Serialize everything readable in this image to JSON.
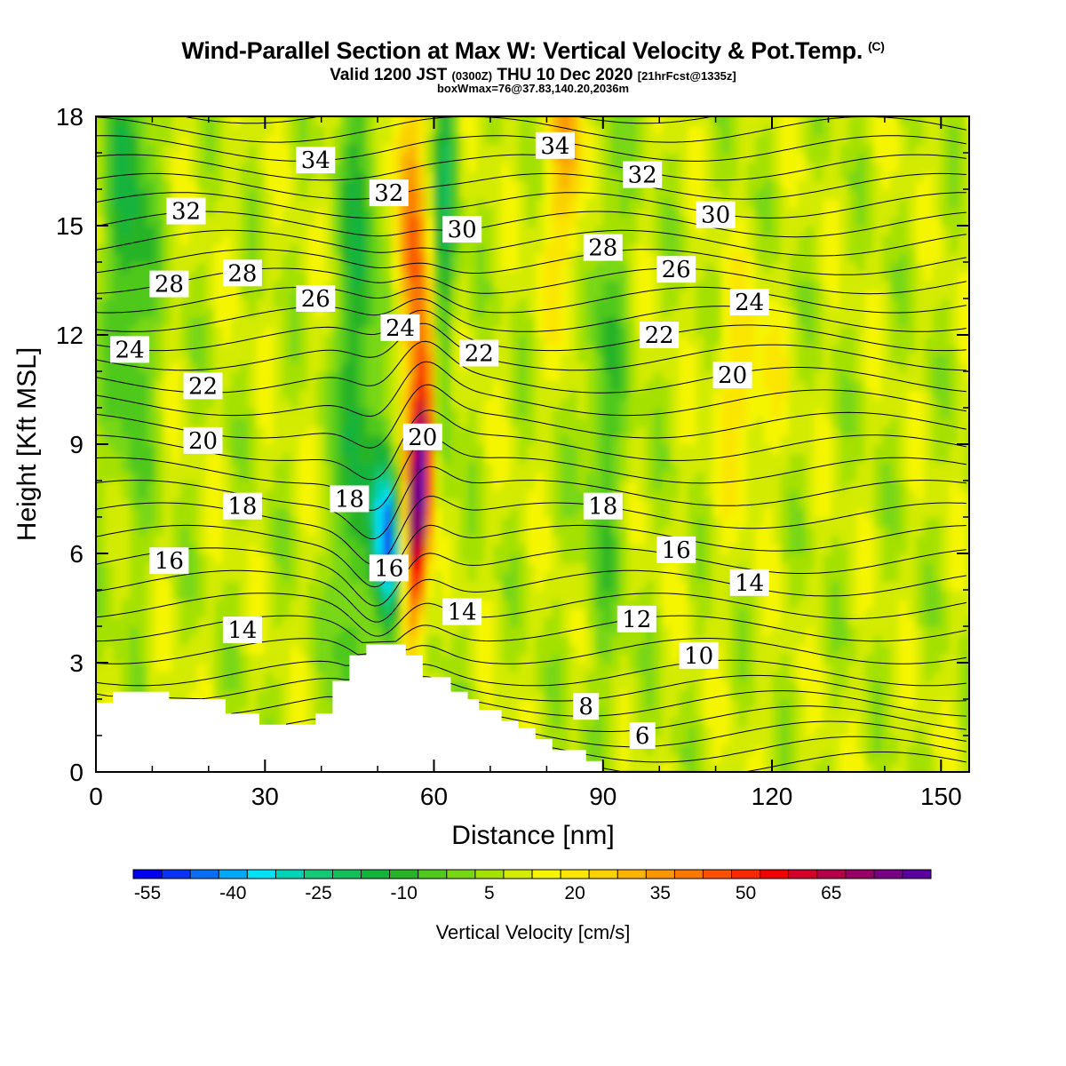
{
  "header": {
    "title": "Wind-Parallel Section at Max W: Vertical Velocity & Pot.Temp.",
    "title_mark": "(C)",
    "valid_prefix": "Valid 1200 JST",
    "valid_utc": "(0300Z)",
    "valid_date": "THU 10 Dec 2020",
    "forecast": "[21hrFcst@1335z]",
    "box_wmax": "boxWmax=76@37.83,140.20,2036m"
  },
  "chart_data": {
    "type": "contour-section",
    "xlabel": "Distance [nm]",
    "ylabel": "Height [Kft MSL]",
    "xlim": [
      0,
      155
    ],
    "ylim": [
      0,
      18
    ],
    "x_ticks": [
      0,
      30,
      60,
      90,
      120,
      150
    ],
    "y_ticks": [
      0,
      3,
      6,
      9,
      12,
      15,
      18
    ],
    "colorbar": {
      "title": "Vertical Velocity [cm/s]",
      "labels": [
        "-55",
        "-40",
        "-25",
        "-10",
        "5",
        "20",
        "35",
        "50",
        "65"
      ],
      "colors": [
        "#0000f0",
        "#0a32f5",
        "#0a6ef5",
        "#00a8f5",
        "#00e1f5",
        "#00d2b4",
        "#14c878",
        "#14be5a",
        "#14b43c",
        "#28b428",
        "#50c81e",
        "#78d714",
        "#a5e100",
        "#d2eb00",
        "#f5f500",
        "#fae600",
        "#fad200",
        "#fab400",
        "#fa9600",
        "#fa7800",
        "#fa5000",
        "#fa2800",
        "#f00000",
        "#d20028",
        "#b40046",
        "#960064",
        "#780082",
        "#5a00a0"
      ]
    },
    "terrain_profile": [
      [
        0,
        1.9
      ],
      [
        3,
        1.9
      ],
      [
        3,
        2.2
      ],
      [
        13,
        2.2
      ],
      [
        13,
        2.0
      ],
      [
        23,
        2.0
      ],
      [
        23,
        1.6
      ],
      [
        29,
        1.6
      ],
      [
        29,
        1.3
      ],
      [
        39,
        1.3
      ],
      [
        39,
        1.6
      ],
      [
        42,
        1.6
      ],
      [
        42,
        2.5
      ],
      [
        45,
        2.5
      ],
      [
        45,
        3.2
      ],
      [
        48,
        3.2
      ],
      [
        48,
        3.5
      ],
      [
        55,
        3.5
      ],
      [
        55,
        3.2
      ],
      [
        58,
        3.2
      ],
      [
        58,
        2.6
      ],
      [
        63,
        2.6
      ],
      [
        63,
        2.2
      ],
      [
        66,
        2.2
      ],
      [
        66,
        2.0
      ],
      [
        68,
        2.0
      ],
      [
        68,
        1.7
      ],
      [
        72,
        1.7
      ],
      [
        72,
        1.4
      ],
      [
        75,
        1.4
      ],
      [
        75,
        1.2
      ],
      [
        78,
        1.2
      ],
      [
        78,
        0.9
      ],
      [
        81,
        0.9
      ],
      [
        81,
        0.6
      ],
      [
        87,
        0.6
      ],
      [
        87,
        0.3
      ],
      [
        90,
        0.3
      ],
      [
        90,
        0.0
      ],
      [
        155,
        0.0
      ]
    ],
    "theta_contour_labels": [
      {
        "text": "34",
        "x": 39,
        "y": 16.8
      },
      {
        "text": "34",
        "x": 81.5,
        "y": 17.2
      },
      {
        "text": "32",
        "x": 16,
        "y": 15.4
      },
      {
        "text": "32",
        "x": 52,
        "y": 15.9
      },
      {
        "text": "32",
        "x": 97,
        "y": 16.4
      },
      {
        "text": "30",
        "x": 65,
        "y": 14.9
      },
      {
        "text": "30",
        "x": 110,
        "y": 15.3
      },
      {
        "text": "28",
        "x": 13,
        "y": 13.4
      },
      {
        "text": "28",
        "x": 26,
        "y": 13.7
      },
      {
        "text": "28",
        "x": 90,
        "y": 14.4
      },
      {
        "text": "26",
        "x": 39,
        "y": 13.0
      },
      {
        "text": "26",
        "x": 103,
        "y": 13.8
      },
      {
        "text": "24",
        "x": 6,
        "y": 11.6
      },
      {
        "text": "24",
        "x": 54,
        "y": 12.2
      },
      {
        "text": "24",
        "x": 116,
        "y": 12.9
      },
      {
        "text": "22",
        "x": 19,
        "y": 10.6
      },
      {
        "text": "22",
        "x": 68,
        "y": 11.5
      },
      {
        "text": "22",
        "x": 100,
        "y": 12.0
      },
      {
        "text": "20",
        "x": 19,
        "y": 9.1
      },
      {
        "text": "20",
        "x": 58,
        "y": 9.2
      },
      {
        "text": "20",
        "x": 113,
        "y": 10.9
      },
      {
        "text": "18",
        "x": 26,
        "y": 7.3
      },
      {
        "text": "18",
        "x": 45,
        "y": 7.5
      },
      {
        "text": "18",
        "x": 90,
        "y": 7.3
      },
      {
        "text": "16",
        "x": 13,
        "y": 5.8
      },
      {
        "text": "16",
        "x": 52,
        "y": 5.6
      },
      {
        "text": "16",
        "x": 103,
        "y": 6.1
      },
      {
        "text": "14",
        "x": 26,
        "y": 3.9
      },
      {
        "text": "14",
        "x": 65,
        "y": 4.4
      },
      {
        "text": "14",
        "x": 116,
        "y": 5.2
      },
      {
        "text": "12",
        "x": 96,
        "y": 4.2
      },
      {
        "text": "10",
        "x": 107,
        "y": 3.2
      },
      {
        "text": "8",
        "x": 87,
        "y": 1.8
      },
      {
        "text": "6",
        "x": 97,
        "y": 1.0
      }
    ]
  }
}
